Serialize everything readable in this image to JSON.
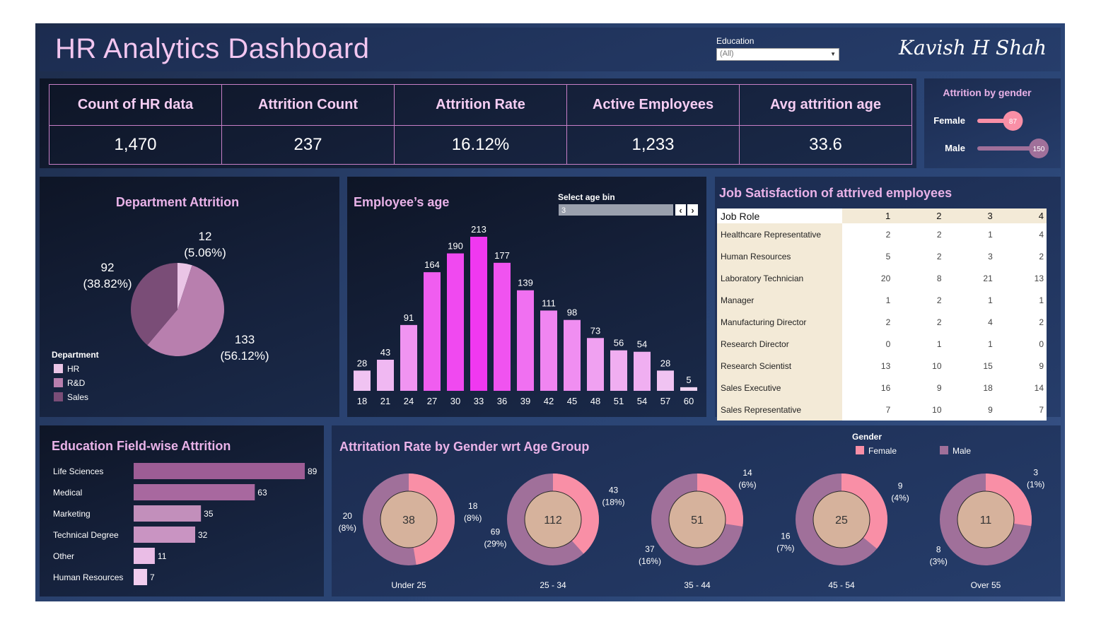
{
  "header": {
    "title": "HR Analytics Dashboard",
    "author": "Kavish H Shah",
    "education_filter": {
      "label": "Education",
      "value": "(All)"
    }
  },
  "kpis": [
    {
      "label": "Count of HR data",
      "value": "1,470"
    },
    {
      "label": "Attrition Count",
      "value": "237"
    },
    {
      "label": "Attrition Rate",
      "value": "16.12%"
    },
    {
      "label": "Active Employees",
      "value": "1,233"
    },
    {
      "label": "Avg attrition age",
      "value": "33.6"
    }
  ],
  "age_filter": {
    "label": "Select age bin",
    "value": "3"
  },
  "colors": {
    "female": "#f98fa6",
    "male": "#a0709a",
    "hr": "#eac5e6",
    "rnd": "#b87fae",
    "sales": "#7a4d77",
    "donut_center": "#d6b29c",
    "title": "#e9b2e8"
  },
  "chart_data": [
    {
      "type": "bar",
      "title": "Attrition by gender",
      "categories": [
        "Female",
        "Male"
      ],
      "values": [
        87,
        150
      ],
      "xlim": [
        0,
        150
      ]
    },
    {
      "type": "pie",
      "title": "Department Attrition",
      "legend_title": "Department",
      "categories": [
        "HR",
        "R&D",
        "Sales"
      ],
      "values": [
        12,
        133,
        92
      ],
      "labels": [
        "12\n(5.06%)",
        "133\n(56.12%)",
        "92\n(38.82%)"
      ]
    },
    {
      "type": "bar",
      "title": "Employee’s age",
      "categories": [
        "18",
        "21",
        "24",
        "27",
        "30",
        "33",
        "36",
        "39",
        "42",
        "45",
        "48",
        "51",
        "54",
        "57",
        "60"
      ],
      "values": [
        28,
        43,
        91,
        164,
        190,
        213,
        177,
        139,
        111,
        98,
        73,
        56,
        54,
        28,
        5
      ],
      "ylim": [
        0,
        213
      ]
    },
    {
      "type": "table",
      "title": "Job Satisfaction of attrived employees",
      "columns": [
        "Job Role",
        "1",
        "2",
        "3",
        "4"
      ],
      "rows": [
        [
          "Healthcare Representative",
          "2",
          "2",
          "1",
          "4"
        ],
        [
          "Human Resources",
          "5",
          "2",
          "3",
          "2"
        ],
        [
          "Laboratory Technician",
          "20",
          "8",
          "21",
          "13"
        ],
        [
          "Manager",
          "1",
          "2",
          "1",
          "1"
        ],
        [
          "Manufacturing Director",
          "2",
          "2",
          "4",
          "2"
        ],
        [
          "Research Director",
          "0",
          "1",
          "1",
          "0"
        ],
        [
          "Research Scientist",
          "13",
          "10",
          "15",
          "9"
        ],
        [
          "Sales Executive",
          "16",
          "9",
          "18",
          "14"
        ],
        [
          "Sales Representative",
          "7",
          "10",
          "9",
          "7"
        ]
      ]
    },
    {
      "type": "bar",
      "title": "Education Field-wise Attrition",
      "orientation": "horizontal",
      "categories": [
        "Life Sciences",
        "Medical",
        "Marketing",
        "Technical Degree",
        "Other",
        "Human Resources"
      ],
      "values": [
        89,
        63,
        35,
        32,
        11,
        7
      ],
      "xlim": [
        0,
        89
      ]
    },
    {
      "type": "pie",
      "title": "Attritation Rate by Gender wrt Age Group",
      "legend_title": "Gender",
      "legend": [
        "Female",
        "Male"
      ],
      "groups": [
        {
          "name": "Under 25",
          "total": 38,
          "female": 18,
          "female_pct": "(8%)",
          "male": 20,
          "male_pct": "(8%)"
        },
        {
          "name": "25 - 34",
          "total": 112,
          "female": 43,
          "female_pct": "(18%)",
          "male": 69,
          "male_pct": "(29%)"
        },
        {
          "name": "35 - 44",
          "total": 51,
          "female": 14,
          "female_pct": "(6%)",
          "male": 37,
          "male_pct": "(16%)"
        },
        {
          "name": "45 - 54",
          "total": 25,
          "female": 9,
          "female_pct": "(4%)",
          "male": 16,
          "male_pct": "(7%)"
        },
        {
          "name": "Over 55",
          "total": 11,
          "female": 3,
          "female_pct": "(1%)",
          "male": 8,
          "male_pct": "(3%)"
        }
      ]
    }
  ]
}
